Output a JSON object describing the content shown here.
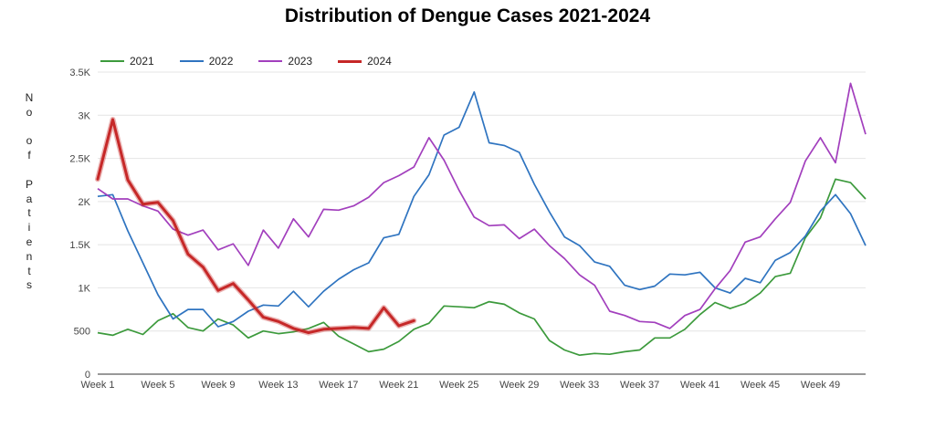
{
  "chart_data": {
    "type": "line",
    "title": "Distribution of Dengue Cases 2021-2024",
    "ylabel": "No of Patients",
    "xlabel": "",
    "ylim": [
      0,
      3500
    ],
    "yticks": [
      0,
      500,
      1000,
      1500,
      2000,
      2500,
      3000,
      3500
    ],
    "ytick_labels": [
      "0",
      "500",
      "1K",
      "1.5K",
      "2K",
      "2.5K",
      "3K",
      "3.5K"
    ],
    "xtick_labels": [
      "Week 1",
      "Week 5",
      "Week 9",
      "Week 13",
      "Week 17",
      "Week 21",
      "Week 25",
      "Week 29",
      "Week 33",
      "Week 37",
      "Week 41",
      "Week 45",
      "Week 49"
    ],
    "xtick_weeks": [
      1,
      5,
      9,
      13,
      17,
      21,
      25,
      29,
      33,
      37,
      41,
      45,
      49
    ],
    "weeks": 52,
    "grid": true,
    "legend_position": "top-left",
    "series": [
      {
        "name": "2021",
        "color": "#3c9a3c",
        "values": [
          480,
          450,
          520,
          460,
          620,
          700,
          540,
          500,
          640,
          570,
          420,
          500,
          470,
          490,
          530,
          600,
          440,
          350,
          260,
          290,
          380,
          520,
          590,
          790,
          780,
          770,
          840,
          810,
          710,
          640,
          390,
          280,
          220,
          240,
          230,
          260,
          280,
          420,
          420,
          520,
          690,
          830,
          760,
          820,
          940,
          1130,
          1170,
          1580,
          1810,
          2260,
          2220,
          2030
        ]
      },
      {
        "name": "2022",
        "color": "#2f74c0",
        "values": [
          2060,
          2080,
          1660,
          1290,
          920,
          640,
          750,
          750,
          550,
          610,
          730,
          800,
          790,
          960,
          780,
          960,
          1100,
          1210,
          1290,
          1580,
          1620,
          2060,
          2310,
          2770,
          2860,
          3270,
          2680,
          2650,
          2570,
          2200,
          1880,
          1590,
          1490,
          1300,
          1250,
          1030,
          980,
          1020,
          1160,
          1150,
          1180,
          1000,
          940,
          1110,
          1060,
          1320,
          1410,
          1600,
          1890,
          2080,
          1860,
          1490
        ]
      },
      {
        "name": "2023",
        "color": "#a23fbd",
        "values": [
          2150,
          2030,
          2030,
          1950,
          1890,
          1680,
          1610,
          1670,
          1440,
          1510,
          1260,
          1670,
          1460,
          1800,
          1590,
          1910,
          1900,
          1950,
          2050,
          2220,
          2300,
          2400,
          2740,
          2480,
          2130,
          1820,
          1720,
          1730,
          1570,
          1680,
          1490,
          1340,
          1150,
          1030,
          730,
          680,
          610,
          600,
          530,
          680,
          750,
          990,
          1200,
          1530,
          1590,
          1800,
          1990,
          2470,
          2740,
          2450,
          3370,
          2780
        ]
      },
      {
        "name": "2024",
        "color": "#c62828",
        "thick": true,
        "values": [
          2260,
          2950,
          2250,
          1970,
          1990,
          1780,
          1390,
          1240,
          970,
          1050,
          860,
          660,
          610,
          530,
          480,
          520,
          530,
          540,
          530,
          770,
          560,
          620
        ]
      }
    ]
  }
}
